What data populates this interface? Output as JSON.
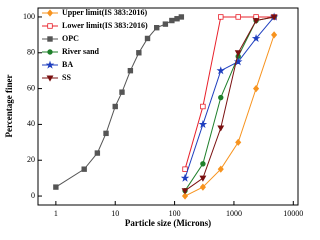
{
  "chart_data": {
    "type": "line",
    "x_label": "Particle size (Microns)",
    "y_label": "Percentage finer",
    "log_x": true,
    "xlim": [
      0.5,
      12000
    ],
    "xticks": [
      1,
      10,
      100,
      1000,
      10000
    ],
    "ylim": [
      -5,
      105
    ],
    "yticks": [
      0,
      20,
      40,
      60,
      80,
      100
    ],
    "legend": "upper left",
    "series": [
      {
        "name": "Upper limit(IS 383:2016)",
        "color": "#f7931e",
        "marker": "diamond",
        "x": [
          150,
          300,
          600,
          1180,
          2360,
          4750
        ],
        "values": [
          0,
          5,
          15,
          30,
          60,
          90
        ]
      },
      {
        "name": "Lower limit(IS 383:2016)",
        "color": "#e8202a",
        "marker": "open-square",
        "x": [
          150,
          300,
          600,
          1180,
          2360,
          4750
        ],
        "values": [
          15,
          50,
          100,
          100,
          100,
          100
        ]
      },
      {
        "name": "OPC",
        "color": "#555555",
        "marker": "square",
        "x": [
          1,
          3,
          5,
          7,
          10,
          13,
          18,
          25,
          35,
          50,
          70,
          90,
          110,
          130
        ],
        "values": [
          5,
          15,
          24,
          35,
          50,
          58,
          70,
          80,
          88,
          94,
          96,
          98,
          99,
          100
        ]
      },
      {
        "name": "River sand",
        "color": "#1e7f2a",
        "marker": "circle",
        "x": [
          150,
          300,
          600,
          1180,
          2360,
          4750
        ],
        "values": [
          3,
          18,
          55,
          78,
          98,
          100
        ]
      },
      {
        "name": "BA",
        "color": "#1f3fbf",
        "marker": "star",
        "x": [
          150,
          300,
          600,
          1180,
          2360,
          4750
        ],
        "values": [
          10,
          40,
          70,
          75,
          88,
          100
        ]
      },
      {
        "name": "SS",
        "color": "#7a1010",
        "marker": "triangle-down",
        "x": [
          150,
          300,
          600,
          1180,
          2360,
          4750
        ],
        "values": [
          3,
          10,
          38,
          80,
          98,
          100
        ]
      }
    ]
  }
}
